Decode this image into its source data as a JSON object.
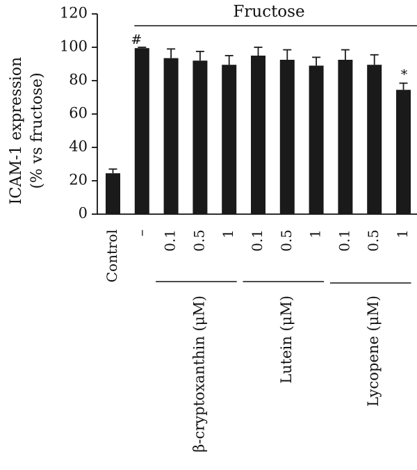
{
  "chart_data": {
    "type": "bar",
    "ylabel_line1": "ICAM-1 expression",
    "ylabel_line2": "(% vs fructose)",
    "ylim": [
      0,
      120
    ],
    "yticks": [
      0,
      20,
      40,
      60,
      80,
      100,
      120
    ],
    "categories": [
      "Control",
      "–",
      "0.1",
      "0.5",
      "1",
      "0.1",
      "0.5",
      "1",
      "0.1",
      "0.5",
      "1"
    ],
    "values": [
      24.5,
      99.5,
      93.5,
      92,
      89.5,
      95,
      92.5,
      89,
      92.5,
      89.5,
      74.5
    ],
    "errors": [
      2.5,
      0.5,
      5.5,
      5.5,
      5.5,
      5,
      6,
      5,
      6,
      6,
      4
    ],
    "markers": [
      "",
      "#",
      "",
      "",
      "",
      "",
      "",
      "",
      "",
      "",
      "*"
    ],
    "bar_color": "#1a1a1a",
    "grid": false,
    "banner": {
      "label": "Fructose",
      "from_index": 1,
      "to_index": 10
    },
    "groups": [
      {
        "label": "β-cryptoxanthin (μM)",
        "from_index": 2,
        "to_index": 4
      },
      {
        "label": "Lutein (μM)",
        "from_index": 5,
        "to_index": 7
      },
      {
        "label": "Lycopene (μM)",
        "from_index": 8,
        "to_index": 10
      }
    ]
  }
}
